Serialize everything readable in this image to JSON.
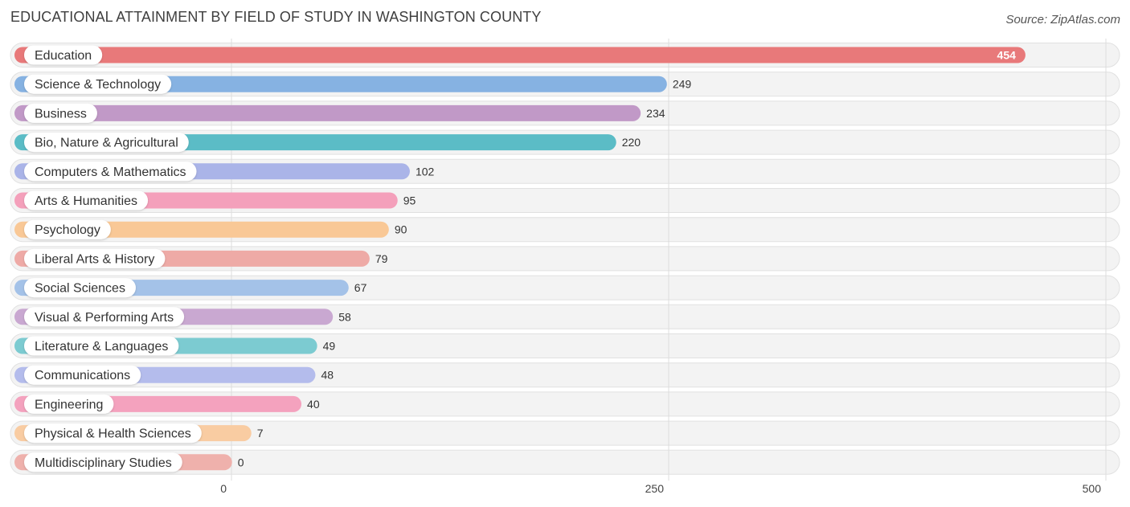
{
  "chart_data": {
    "type": "bar",
    "orientation": "horizontal",
    "title": "EDUCATIONAL ATTAINMENT BY FIELD OF STUDY IN WASHINGTON COUNTY",
    "source": "Source: ZipAtlas.com",
    "xlabel": "",
    "ylabel": "",
    "xlim": [
      0,
      500
    ],
    "xticks": [
      0,
      250,
      500
    ],
    "grid": true,
    "legend": "none",
    "categories": [
      "Education",
      "Science & Technology",
      "Business",
      "Bio, Nature & Agricultural",
      "Computers & Mathematics",
      "Arts & Humanities",
      "Psychology",
      "Liberal Arts & History",
      "Social Sciences",
      "Visual & Performing Arts",
      "Literature & Languages",
      "Communications",
      "Engineering",
      "Physical & Health Sciences",
      "Multidisciplinary Studies"
    ],
    "values": [
      454,
      249,
      234,
      220,
      102,
      95,
      90,
      79,
      67,
      58,
      49,
      48,
      40,
      7,
      0
    ],
    "colors": [
      "#e8797a",
      "#86b2e2",
      "#c199c7",
      "#5bbcc6",
      "#aab4e8",
      "#f4a0bb",
      "#f9c896",
      "#eeaaa6",
      "#a4c2e8",
      "#c9a8d1",
      "#7ccbd1",
      "#b4bcec",
      "#f4a2be",
      "#f9cca2",
      "#efb1ac"
    ]
  }
}
